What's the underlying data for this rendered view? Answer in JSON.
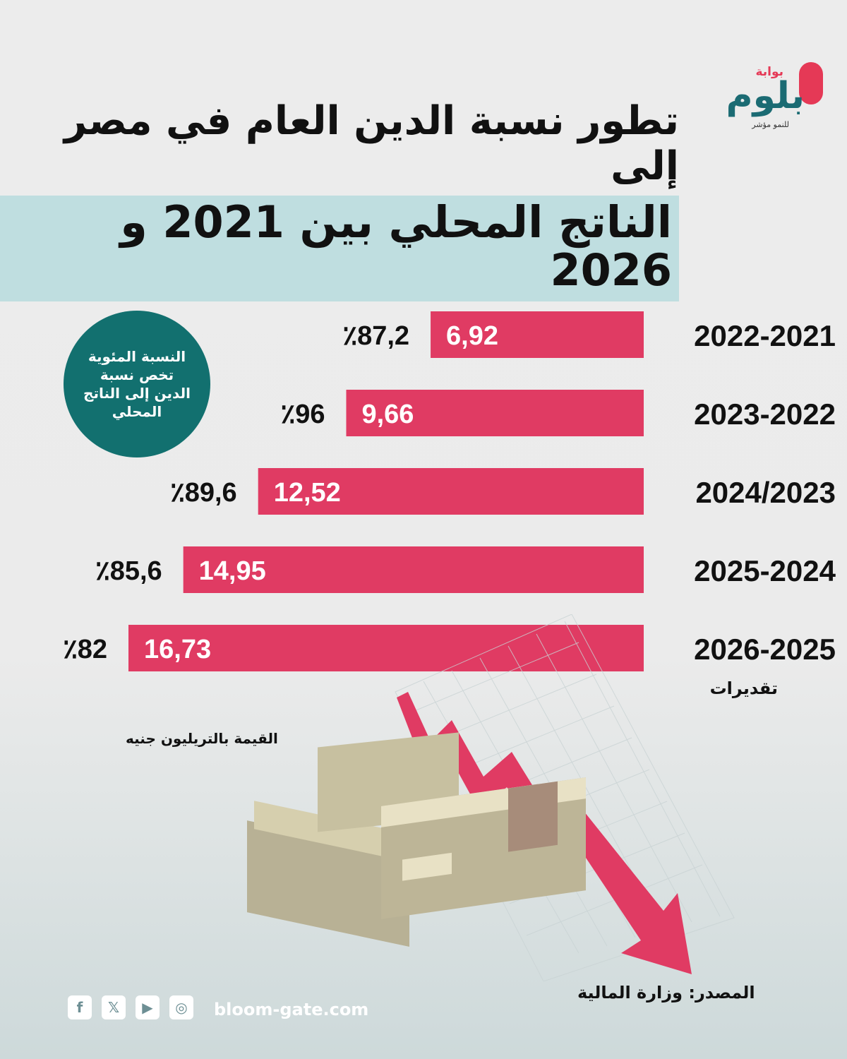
{
  "brand": {
    "top": "بوابة",
    "name": "بلوم",
    "tagline": "للنمو مؤشر"
  },
  "title": {
    "line1": "تطور نسبة الدين العام في مصر إلى",
    "line2": "الناتج المحلي بين 2021 و 2026"
  },
  "legend_badge": "النسبة المئوية تخص نسبة الدين إلى الناتج المحلي",
  "unit_note": "القيمة بالتريليون جنيه",
  "source": "المصدر: وزارة المالية",
  "website": "bloom-gate.com",
  "social_icons": [
    "facebook-icon",
    "x-icon",
    "youtube-icon",
    "instagram-icon"
  ],
  "colors": {
    "bar": "#e03b63",
    "badge": "#12706f",
    "title_highlight": "#bfdee0"
  },
  "chart_data": {
    "type": "bar",
    "orientation": "horizontal",
    "categories": [
      "2022-2021",
      "2023-2022",
      "2024/2023",
      "2025-2024",
      "2026-2025"
    ],
    "category_notes": [
      "",
      "",
      "",
      "",
      "تقديرات"
    ],
    "values": [
      6.92,
      9.66,
      12.52,
      14.95,
      16.73
    ],
    "value_labels": [
      "6,92",
      "9,66",
      "12,52",
      "14,95",
      "16,73"
    ],
    "ratio_labels": [
      "٪87,2",
      "٪96",
      "٪89,6",
      "٪85,6",
      "٪82"
    ],
    "ratios": [
      87.2,
      96,
      89.6,
      85.6,
      82
    ],
    "xlim": [
      0,
      16.73
    ]
  }
}
